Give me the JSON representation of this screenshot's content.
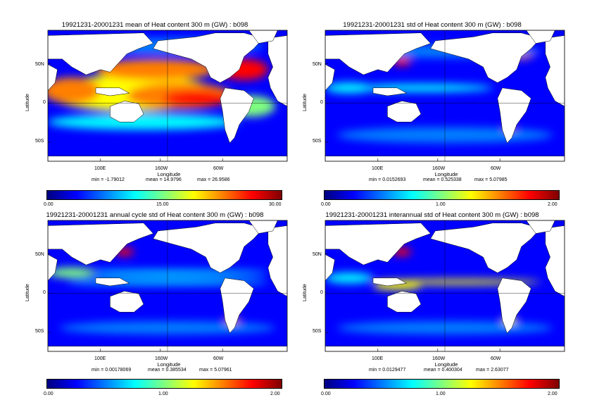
{
  "panels": [
    {
      "title": "19921231-20001231 mean of Heat content 300 m (GW) : b098",
      "ylabel": "Latitude",
      "xlabel": "Longitude",
      "lat_ticks": [
        "50N",
        "0",
        "50S"
      ],
      "lon_ticks": [
        "100E",
        "160W",
        "60W"
      ],
      "stats": {
        "min": "min = -1.79012",
        "mean": "mean = 14.9796",
        "max": "max = 26.9586"
      },
      "colorbar": {
        "min": "0.00",
        "mid": "15.00",
        "max": "30.00"
      },
      "field": "mean"
    },
    {
      "title": "19921231-20001231 std of Heat content 300 m (GW) : b098",
      "ylabel": "Latitude",
      "xlabel": "Longitude",
      "lat_ticks": [
        "50N",
        "0",
        "50S"
      ],
      "lon_ticks": [
        "100E",
        "160W",
        "60W"
      ],
      "stats": {
        "min": "min = 0.0152693",
        "mean": "mean = 0.525338",
        "max": "max = 5.07985"
      },
      "colorbar": {
        "min": "0.00",
        "mid": "1.00",
        "max": "2.00"
      },
      "field": "std"
    },
    {
      "title": "19921231-20001231 annual cycle std of Heat content 300 m (GW) : b098",
      "ylabel": "Latitude",
      "xlabel": "Longitude",
      "lat_ticks": [
        "50N",
        "0",
        "50S"
      ],
      "lon_ticks": [
        "100E",
        "160W",
        "60W"
      ],
      "stats": {
        "min": "min = 0.00178069",
        "mean": "mean = 0.385534",
        "max": "max = 5.07961"
      },
      "colorbar": {
        "min": "0.00",
        "mid": "1.00",
        "max": "2.00"
      },
      "field": "annual"
    },
    {
      "title": "19921231-20001231 interannual std of Heat content 300 m (GW) : b098",
      "ylabel": "Latitude",
      "xlabel": "Longitude",
      "lat_ticks": [
        "50N",
        "0",
        "50S"
      ],
      "lon_ticks": [
        "100E",
        "160W",
        "60W"
      ],
      "stats": {
        "min": "min = 0.0129477",
        "mean": "mean = 0.400304",
        "max": "max = 2.63077"
      },
      "colorbar": {
        "min": "0.00",
        "mid": "1.00",
        "max": "2.00"
      },
      "field": "interannual"
    }
  ],
  "colors": {
    "land": "#ffffff",
    "jet": [
      "#00007f",
      "#0000ff",
      "#007fff",
      "#00ffff",
      "#7fff7f",
      "#ffff00",
      "#ff7f00",
      "#ff0000",
      "#7f0000"
    ]
  }
}
